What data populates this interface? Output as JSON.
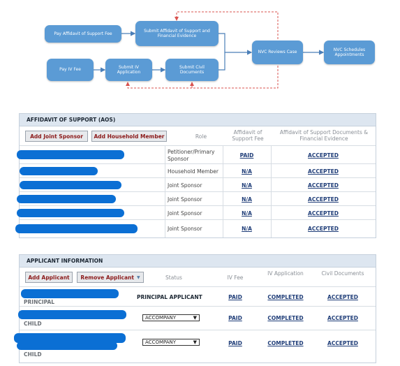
{
  "flow": {
    "nodes": {
      "pay_affidavit": "Pay Affidavit of Support Fee",
      "submit_affidavit": "Submit Affidavit of Support and Financial Evidence",
      "pay_iv": "Pay IV Fee",
      "submit_iv": "Submit IV Application",
      "submit_civil": "Submit Civil Documents",
      "nvc_reviews": "NVC Reviews Case",
      "nvc_schedules": "NVC Schedules Appointments"
    },
    "colors": {
      "node": "#5b9bd5",
      "arrow": "#4b7fb8",
      "dashed": "#d9534f"
    }
  },
  "aos": {
    "title": "AFFIDAVIT OF SUPPORT (AOS)",
    "buttons": {
      "add_joint_sponsor": "Add Joint Sponsor",
      "add_household_member": "Add Household Member"
    },
    "headers": {
      "role": "Role",
      "fee": "Affidavit of Support Fee",
      "docs": "Affidavit of Support Documents & Financial Evidence"
    },
    "rows": [
      {
        "role": "Petitioner/Primary Sponsor",
        "fee": "PAID",
        "docs": "ACCEPTED"
      },
      {
        "role": "Household Member",
        "fee": "N/A",
        "docs": "ACCEPTED"
      },
      {
        "role": "Joint Sponsor",
        "fee": "N/A",
        "docs": "ACCEPTED"
      },
      {
        "role": "Joint Sponsor",
        "fee": "N/A",
        "docs": "ACCEPTED"
      },
      {
        "role": "Joint Sponsor",
        "fee": "N/A",
        "docs": "ACCEPTED"
      },
      {
        "role": "Joint Sponsor",
        "fee": "N/A",
        "docs": "ACCEPTED"
      }
    ]
  },
  "applicant": {
    "title": "APPLICANT INFORMATION",
    "buttons": {
      "add_applicant": "Add Applicant",
      "remove_applicant": "Remove Applicant"
    },
    "headers": {
      "status": "Status",
      "iv_fee": "IV Fee",
      "iv_app": "IV Application",
      "civil": "Civil Documents"
    },
    "rows": [
      {
        "type": "PRINCIPAL",
        "status": "PRINCIPAL APPLICANT",
        "iv_fee": "PAID",
        "iv_app": "COMPLETED",
        "civil": "ACCEPTED"
      },
      {
        "type": "CHILD",
        "status": "ACCOMPANY",
        "iv_fee": "PAID",
        "iv_app": "COMPLETED",
        "civil": "ACCEPTED"
      },
      {
        "type": "CHILD",
        "status": "ACCOMPANY",
        "iv_fee": "PAID",
        "iv_app": "COMPLETED",
        "civil": "ACCEPTED"
      }
    ]
  }
}
